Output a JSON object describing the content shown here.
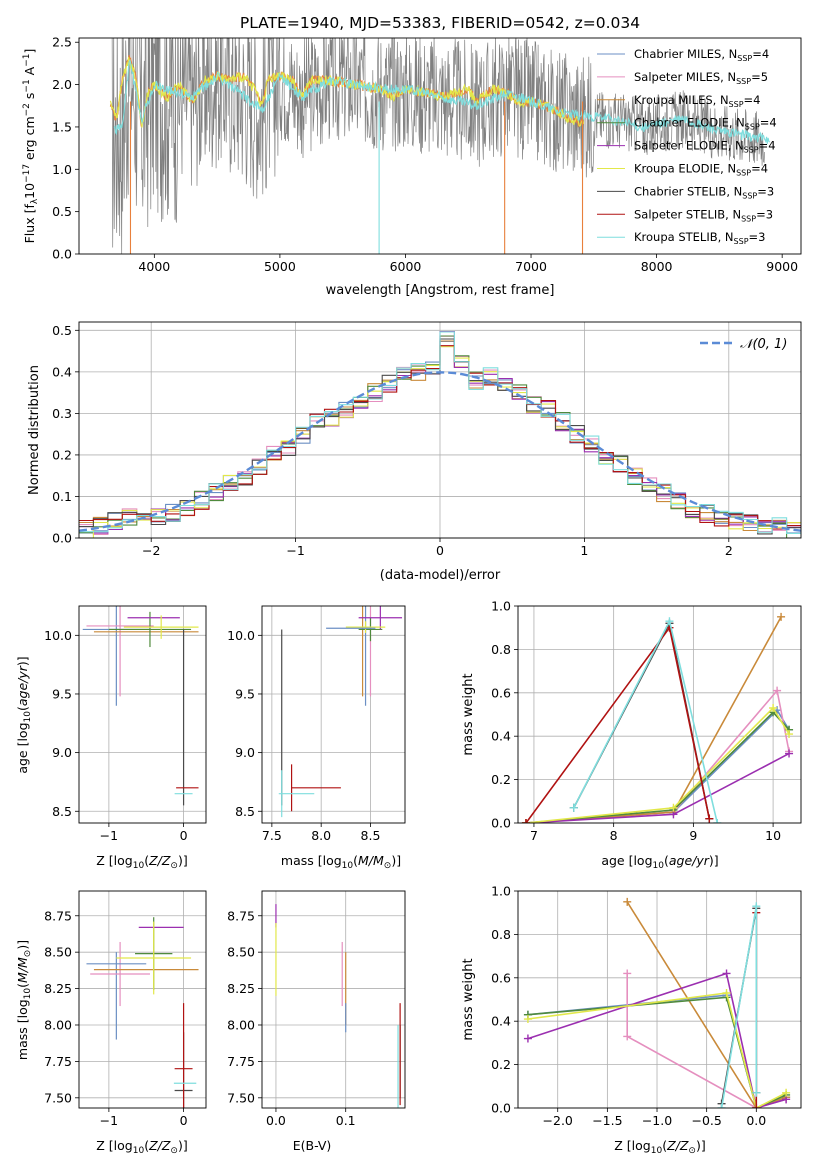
{
  "figure_title": "PLATE=1940, MJD=53383, FIBERID=0542, z=0.034",
  "colors": {
    "Chabrier MILES": "#6b8fc4",
    "Salpeter MILES": "#e58fbf",
    "Kroupa MILES": "#c98a3a",
    "Chabrier ELODIE": "#4f8a3d",
    "Salpeter ELODIE": "#9b2fb0",
    "Kroupa ELODIE": "#e2e84a",
    "Chabrier STELIB": "#4a4a4a",
    "Salpeter STELIB": "#b01212",
    "Kroupa STELIB": "#7fdede",
    "data": "#808080",
    "gaussian": "#5b8bd6",
    "extra_orange": "#e8803c"
  },
  "chart_data": [
    {
      "id": "spectrum",
      "type": "line",
      "title": "PLATE=1940, MJD=53383, FIBERID=0542, z=0.034",
      "xlabel": "wavelength [Angstrom, rest frame]",
      "ylabel": "Flux [f_λ 10^-17 erg cm^-2 s^-1 A^-1]",
      "xlim": [
        3400,
        9150
      ],
      "ylim": [
        0,
        2.55
      ],
      "xticks": [
        "4000",
        "5000",
        "6000",
        "7000",
        "8000",
        "9000"
      ],
      "yticks": [
        "0.0",
        "0.5",
        "1.0",
        "1.5",
        "2.0",
        "2.5"
      ],
      "legend": [
        {
          "base": "Chabrier MILES, N",
          "sub": "SSP",
          "tail": "=4"
        },
        {
          "base": "Salpeter MILES, N",
          "sub": "SSP",
          "tail": "=5"
        },
        {
          "base": "Kroupa MILES, N",
          "sub": "SSP",
          "tail": "=4"
        },
        {
          "base": "Chabrier ELODIE, N",
          "sub": "SSP",
          "tail": "=4"
        },
        {
          "base": "Salpeter ELODIE, N",
          "sub": "SSP",
          "tail": "=4"
        },
        {
          "base": "Kroupa ELODIE, N",
          "sub": "SSP",
          "tail": "=4"
        },
        {
          "base": "Chabrier STELIB, N",
          "sub": "SSP",
          "tail": "=3"
        },
        {
          "base": "Salpeter STELIB, N",
          "sub": "SSP",
          "tail": "=3"
        },
        {
          "base": "Kroupa STELIB, N",
          "sub": "SSP",
          "tail": "=3"
        }
      ],
      "legend_position": "top-right",
      "series_model_points": [
        [
          3650,
          1.75
        ],
        [
          3700,
          1.6
        ],
        [
          3750,
          2.1
        ],
        [
          3800,
          2.3
        ],
        [
          3850,
          2.1
        ],
        [
          3900,
          1.5
        ],
        [
          3950,
          1.9
        ],
        [
          4000,
          2.0
        ],
        [
          4100,
          1.85
        ],
        [
          4200,
          2.0
        ],
        [
          4300,
          1.8
        ],
        [
          4400,
          2.05
        ],
        [
          4500,
          2.1
        ],
        [
          4600,
          2.05
        ],
        [
          4700,
          2.1
        ],
        [
          4800,
          1.95
        ],
        [
          4860,
          1.75
        ],
        [
          4900,
          2.05
        ],
        [
          5000,
          2.1
        ],
        [
          5100,
          2.05
        ],
        [
          5175,
          1.85
        ],
        [
          5250,
          2.05
        ],
        [
          5400,
          2.05
        ],
        [
          5600,
          2.0
        ],
        [
          5800,
          1.95
        ],
        [
          5900,
          1.85
        ],
        [
          6000,
          1.95
        ],
        [
          6200,
          1.9
        ],
        [
          6300,
          1.85
        ],
        [
          6500,
          1.95
        ],
        [
          6563,
          1.8
        ],
        [
          6700,
          1.95
        ],
        [
          6800,
          1.9
        ],
        [
          6900,
          1.8
        ],
        [
          7000,
          1.8
        ],
        [
          7200,
          1.7
        ],
        [
          7300,
          1.6
        ],
        [
          7420,
          1.55
        ]
      ],
      "stelib_points": [
        [
          3680,
          1.45
        ],
        [
          3750,
          1.5
        ],
        [
          3800,
          2.3
        ],
        [
          3900,
          1.6
        ],
        [
          4000,
          2.0
        ],
        [
          4300,
          1.85
        ],
        [
          4500,
          2.1
        ],
        [
          4860,
          1.7
        ],
        [
          5000,
          2.1
        ],
        [
          5175,
          1.85
        ],
        [
          5400,
          2.05
        ],
        [
          5800,
          1.95
        ],
        [
          6000,
          1.95
        ],
        [
          6300,
          1.85
        ],
        [
          6563,
          1.75
        ],
        [
          6800,
          1.9
        ],
        [
          7000,
          1.8
        ],
        [
          7300,
          1.65
        ],
        [
          7600,
          1.6
        ],
        [
          7900,
          1.5
        ],
        [
          8200,
          1.6
        ],
        [
          8500,
          1.45
        ],
        [
          8700,
          1.4
        ],
        [
          8900,
          1.35
        ]
      ]
    },
    {
      "id": "residuals",
      "type": "bar",
      "xlabel": "(data-model)/error",
      "ylabel": "Normed distribution",
      "xlim": [
        -2.5,
        2.5
      ],
      "ylim": [
        0,
        0.52
      ],
      "xticks": [
        "−2",
        "−1",
        "0",
        "1",
        "2"
      ],
      "yticks": [
        "0.0",
        "0.1",
        "0.2",
        "0.3",
        "0.4",
        "0.5"
      ],
      "legend": [
        {
          "label": "𝒩(0, 1)"
        }
      ],
      "legend_position": "top-right",
      "bin_width": 0.1,
      "bin_centers": [
        -2.45,
        -2.35,
        -2.25,
        -2.15,
        -2.05,
        -1.95,
        -1.85,
        -1.75,
        -1.65,
        -1.55,
        -1.45,
        -1.35,
        -1.25,
        -1.15,
        -1.05,
        -0.95,
        -0.85,
        -0.75,
        -0.65,
        -0.55,
        -0.45,
        -0.35,
        -0.25,
        -0.15,
        -0.05,
        0.05,
        0.15,
        0.25,
        0.35,
        0.45,
        0.55,
        0.65,
        0.75,
        0.85,
        0.95,
        1.05,
        1.15,
        1.25,
        1.35,
        1.45,
        1.55,
        1.65,
        1.75,
        1.85,
        1.95,
        2.05,
        2.15,
        2.25,
        2.35,
        2.45
      ],
      "histogram_values": [
        0.02,
        0.03,
        0.04,
        0.05,
        0.04,
        0.05,
        0.06,
        0.07,
        0.09,
        0.11,
        0.13,
        0.14,
        0.17,
        0.2,
        0.22,
        0.25,
        0.28,
        0.29,
        0.31,
        0.33,
        0.35,
        0.37,
        0.39,
        0.4,
        0.41,
        0.48,
        0.42,
        0.38,
        0.39,
        0.37,
        0.35,
        0.32,
        0.31,
        0.28,
        0.25,
        0.23,
        0.2,
        0.18,
        0.15,
        0.13,
        0.11,
        0.09,
        0.07,
        0.06,
        0.05,
        0.04,
        0.04,
        0.03,
        0.03,
        0.02
      ]
    },
    {
      "id": "age_vs_Z",
      "type": "scatter",
      "xlabel": "Z [log10(Z/Z⊙)]",
      "ylabel": "age [log10(age/yr)]",
      "xlim": [
        -1.4,
        0.3
      ],
      "ylim": [
        8.4,
        10.25
      ],
      "xticks": [
        "−1",
        "0"
      ],
      "yticks": [
        "8.5",
        "9.0",
        "9.5",
        "10.0"
      ]
    },
    {
      "id": "age_vs_mass",
      "type": "scatter",
      "xlabel": "mass [log10(M/M⊙)]",
      "xlim": [
        7.4,
        8.85
      ],
      "ylim": [
        8.4,
        10.25
      ],
      "xticks": [
        "7.5",
        "8.0",
        "8.5"
      ],
      "yticks": [
        "8.5",
        "9.0",
        "9.5",
        "10.0"
      ]
    },
    {
      "id": "weight_vs_age",
      "type": "line",
      "xlabel": "age [log10(age/yr)]",
      "ylabel": "mass weight",
      "xlim": [
        6.8,
        10.35
      ],
      "ylim": [
        0,
        1.0
      ],
      "xticks": [
        "7",
        "8",
        "9",
        "10"
      ],
      "yticks": [
        "0.0",
        "0.2",
        "0.4",
        "0.6",
        "0.8",
        "1.0"
      ],
      "series": [
        {
          "name": "Chabrier MILES",
          "x": [
            6.9,
            8.75,
            10.05,
            10.2
          ],
          "y": [
            0.0,
            0.05,
            0.52,
            0.43
          ]
        },
        {
          "name": "Salpeter MILES",
          "x": [
            6.9,
            8.75,
            10.05,
            10.2
          ],
          "y": [
            0.0,
            0.05,
            0.61,
            0.33
          ]
        },
        {
          "name": "Kroupa MILES",
          "x": [
            6.9,
            8.75,
            10.1
          ],
          "y": [
            0.0,
            0.05,
            0.95
          ]
        },
        {
          "name": "Chabrier ELODIE",
          "x": [
            6.9,
            8.75,
            10.0,
            10.2
          ],
          "y": [
            0.0,
            0.06,
            0.51,
            0.43
          ]
        },
        {
          "name": "Salpeter ELODIE",
          "x": [
            6.9,
            8.75,
            10.2
          ],
          "y": [
            0.0,
            0.04,
            0.32
          ]
        },
        {
          "name": "Kroupa ELODIE",
          "x": [
            6.9,
            8.75,
            10.0,
            10.2
          ],
          "y": [
            0.0,
            0.07,
            0.53,
            0.41
          ]
        },
        {
          "name": "Chabrier STELIB",
          "x": [
            7.5,
            8.7,
            9.2
          ],
          "y": [
            0.07,
            0.92,
            0.02
          ]
        },
        {
          "name": "Salpeter STELIB",
          "x": [
            6.9,
            8.7,
            9.2
          ],
          "y": [
            0.0,
            0.9,
            0.02
          ]
        },
        {
          "name": "Kroupa STELIB",
          "x": [
            7.5,
            8.7,
            9.3
          ],
          "y": [
            0.07,
            0.93,
            0.0
          ]
        }
      ]
    },
    {
      "id": "mass_vs_Z",
      "type": "scatter",
      "xlabel": "Z [log10(Z/Z⊙)]",
      "ylabel": "mass [log10(M/M⊙)]",
      "xlim": [
        -1.4,
        0.3
      ],
      "ylim": [
        7.43,
        8.92
      ],
      "xticks": [
        "−1",
        "0"
      ],
      "yticks": [
        "7.50",
        "7.75",
        "8.00",
        "8.25",
        "8.50",
        "8.75"
      ]
    },
    {
      "id": "mass_vs_EBV",
      "type": "scatter",
      "xlabel": "E(B-V)",
      "xlim": [
        -0.02,
        0.185
      ],
      "ylim": [
        7.43,
        8.92
      ],
      "xticks": [
        "0.0",
        "0.1"
      ],
      "yticks": [
        "7.50",
        "7.75",
        "8.00",
        "8.25",
        "8.50",
        "8.75"
      ]
    },
    {
      "id": "weight_vs_Z",
      "type": "line",
      "xlabel": "Z [log10(Z/Z⊙)]",
      "ylabel": "mass weight",
      "xlim": [
        -2.4,
        0.45
      ],
      "ylim": [
        0,
        1.0
      ],
      "xticks": [
        "−2.0",
        "−1.5",
        "−1.0",
        "−0.5",
        "0.0"
      ],
      "yticks": [
        "0.0",
        "0.2",
        "0.4",
        "0.6",
        "0.8",
        "1.0"
      ],
      "series": [
        {
          "name": "Chabrier MILES",
          "x": [
            -2.3,
            -0.3,
            0.0,
            0.3
          ],
          "y": [
            0.43,
            0.52,
            0.0,
            0.05
          ]
        },
        {
          "name": "Salpeter MILES",
          "x": [
            -1.3,
            -1.3,
            0.0,
            0.3
          ],
          "y": [
            0.62,
            0.33,
            0.0,
            0.04
          ]
        },
        {
          "name": "Kroupa MILES",
          "x": [
            -1.3,
            0.0,
            0.3
          ],
          "y": [
            0.95,
            0.0,
            0.05
          ]
        },
        {
          "name": "Chabrier ELODIE",
          "x": [
            -2.3,
            -0.3,
            0.0,
            0.3
          ],
          "y": [
            0.43,
            0.51,
            0.0,
            0.06
          ]
        },
        {
          "name": "Salpeter ELODIE",
          "x": [
            -2.3,
            -0.3,
            0.0,
            0.3
          ],
          "y": [
            0.32,
            0.62,
            0.0,
            0.04
          ]
        },
        {
          "name": "Kroupa ELODIE",
          "x": [
            -2.3,
            -0.3,
            0.0,
            0.3
          ],
          "y": [
            0.41,
            0.53,
            0.0,
            0.07
          ]
        },
        {
          "name": "Chabrier STELIB",
          "x": [
            -0.35,
            0.0,
            0.0
          ],
          "y": [
            0.02,
            0.92,
            0.07
          ]
        },
        {
          "name": "Salpeter STELIB",
          "x": [
            0.0,
            0.0
          ],
          "y": [
            0.9,
            0.0
          ]
        },
        {
          "name": "Kroupa STELIB",
          "x": [
            -0.35,
            0.0,
            0.0
          ],
          "y": [
            0.0,
            0.93,
            0.07
          ]
        }
      ]
    }
  ]
}
